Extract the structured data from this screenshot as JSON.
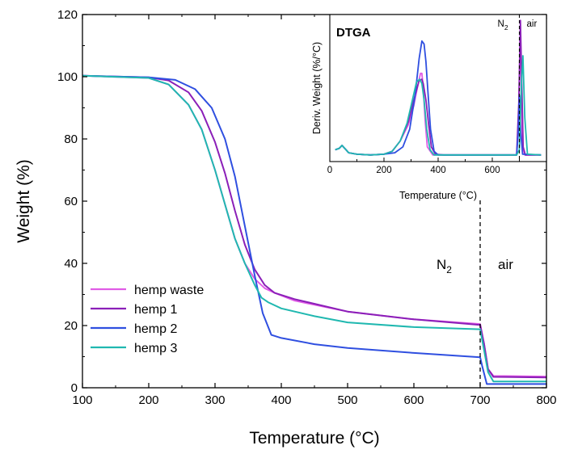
{
  "chart_data": [
    {
      "type": "line",
      "xlabel": "Temperature (°C)",
      "ylabel": "Weight (%)",
      "xlim": [
        100,
        800
      ],
      "ylim": [
        0,
        120
      ],
      "xticks": [
        100,
        200,
        300,
        400,
        500,
        600,
        700,
        800
      ],
      "yticks": [
        0,
        20,
        40,
        60,
        80,
        100,
        120
      ],
      "divider_x": 700,
      "region_left": {
        "main": "N",
        "sub": "2"
      },
      "region_right": "air",
      "legend_position": "lower-left",
      "series": [
        {
          "name": "hemp waste",
          "color": "#e05ce6",
          "x": [
            100,
            200,
            230,
            260,
            280,
            300,
            315,
            330,
            345,
            360,
            375,
            390,
            420,
            500,
            600,
            700,
            706,
            712,
            720,
            800
          ],
          "y": [
            100.3,
            99.6,
            97.5,
            91,
            83,
            70,
            59,
            48,
            40,
            35,
            32,
            30.5,
            28,
            24.5,
            22,
            20.5,
            14,
            6,
            3.8,
            3.6
          ]
        },
        {
          "name": "hemp 1",
          "color": "#8b1fb8",
          "x": [
            100,
            200,
            230,
            260,
            280,
            300,
            315,
            330,
            345,
            360,
            375,
            390,
            420,
            500,
            600,
            700,
            706,
            712,
            720,
            800
          ],
          "y": [
            100.3,
            99.8,
            98.8,
            95,
            89,
            79,
            69,
            57,
            46,
            38,
            33,
            30.5,
            28.5,
            24.5,
            22,
            20.2,
            14,
            6,
            3.5,
            3.3
          ]
        },
        {
          "name": "hemp 2",
          "color": "#2f4fe0",
          "x": [
            100,
            200,
            240,
            270,
            295,
            315,
            330,
            345,
            360,
            372,
            385,
            400,
            450,
            500,
            600,
            700,
            703,
            710,
            800
          ],
          "y": [
            100.3,
            99.8,
            99,
            96,
            90,
            80,
            68,
            52,
            36,
            24,
            17,
            16,
            14,
            12.8,
            11.2,
            9.8,
            7,
            1.2,
            1.2
          ]
        },
        {
          "name": "hemp 3",
          "color": "#20b8b0",
          "x": [
            100,
            200,
            230,
            260,
            280,
            300,
            315,
            330,
            345,
            360,
            370,
            380,
            400,
            450,
            500,
            600,
            700,
            706,
            712,
            720,
            800
          ],
          "y": [
            100.3,
            99.6,
            97.5,
            91,
            83,
            70,
            59,
            48,
            40,
            33,
            29,
            27.5,
            25.5,
            23,
            21,
            19.5,
            18.8,
            12,
            5,
            2,
            2
          ]
        }
      ]
    },
    {
      "type": "line",
      "title": "DTGA",
      "xlabel": "Temperature (°C)",
      "ylabel": "Deriv. Weight (%/°C)",
      "xlim": [
        0,
        800
      ],
      "ylim": [
        0,
        1
      ],
      "xticks": [
        0,
        200,
        400,
        600
      ],
      "divider_x": 700,
      "region_left": {
        "main": "N",
        "sub": "2"
      },
      "region_right": "air",
      "series": [
        {
          "name": "hemp waste",
          "color": "#e05ce6",
          "x": [
            20,
            35,
            45,
            55,
            70,
            100,
            150,
            200,
            230,
            260,
            290,
            310,
            325,
            335,
            340,
            345,
            352,
            360,
            380,
            420,
            500,
            600,
            690,
            698,
            703,
            707,
            712,
            720,
            780
          ],
          "y": [
            0.08,
            0.09,
            0.11,
            0.09,
            0.06,
            0.05,
            0.045,
            0.05,
            0.07,
            0.14,
            0.25,
            0.38,
            0.52,
            0.6,
            0.6,
            0.5,
            0.28,
            0.1,
            0.045,
            0.045,
            0.045,
            0.045,
            0.045,
            0.3,
            0.92,
            0.5,
            0.1,
            0.045,
            0.045
          ]
        },
        {
          "name": "hemp 1",
          "color": "#8b1fb8",
          "x": [
            20,
            35,
            45,
            55,
            70,
            100,
            150,
            200,
            230,
            260,
            290,
            310,
            330,
            340,
            345,
            355,
            365,
            375,
            390,
            420,
            500,
            600,
            690,
            698,
            704,
            708,
            714,
            722,
            780
          ],
          "y": [
            0.08,
            0.09,
            0.11,
            0.09,
            0.06,
            0.05,
            0.045,
            0.05,
            0.07,
            0.14,
            0.27,
            0.42,
            0.55,
            0.56,
            0.53,
            0.42,
            0.25,
            0.1,
            0.05,
            0.045,
            0.045,
            0.045,
            0.045,
            0.4,
            0.96,
            0.6,
            0.1,
            0.045,
            0.045
          ]
        },
        {
          "name": "hemp 2",
          "color": "#2f4fe0",
          "x": [
            20,
            35,
            45,
            55,
            70,
            100,
            150,
            200,
            240,
            270,
            295,
            315,
            330,
            340,
            348,
            355,
            362,
            372,
            385,
            400,
            500,
            600,
            690,
            696,
            700,
            705,
            712,
            780
          ],
          "y": [
            0.08,
            0.09,
            0.11,
            0.09,
            0.06,
            0.05,
            0.045,
            0.05,
            0.06,
            0.1,
            0.22,
            0.45,
            0.7,
            0.82,
            0.8,
            0.68,
            0.48,
            0.22,
            0.07,
            0.045,
            0.045,
            0.045,
            0.045,
            0.2,
            0.45,
            0.2,
            0.05,
            0.045
          ]
        },
        {
          "name": "hemp 3",
          "color": "#20b8b0",
          "x": [
            20,
            35,
            45,
            55,
            70,
            100,
            150,
            200,
            230,
            260,
            285,
            305,
            320,
            332,
            340,
            348,
            358,
            370,
            385,
            420,
            500,
            600,
            690,
            700,
            708,
            713,
            720,
            730,
            780
          ],
          "y": [
            0.08,
            0.09,
            0.11,
            0.09,
            0.06,
            0.05,
            0.045,
            0.05,
            0.07,
            0.14,
            0.26,
            0.42,
            0.54,
            0.56,
            0.53,
            0.42,
            0.22,
            0.08,
            0.045,
            0.045,
            0.045,
            0.045,
            0.045,
            0.08,
            0.55,
            0.72,
            0.3,
            0.05,
            0.045
          ]
        }
      ]
    }
  ]
}
